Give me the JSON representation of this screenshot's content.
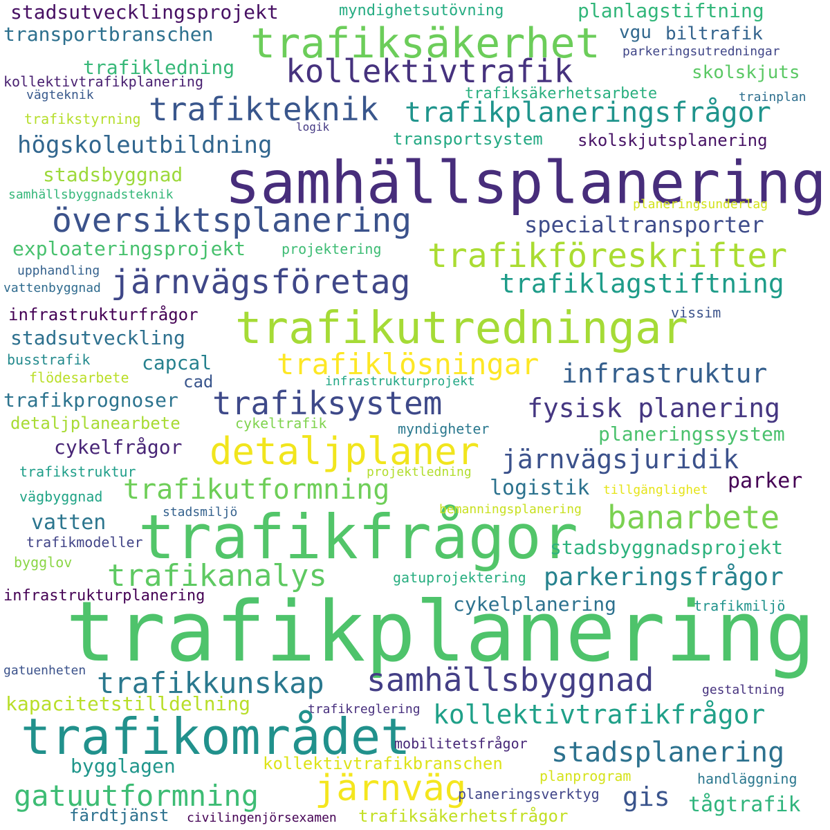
{
  "words": [
    {
      "text": "trafikplanering",
      "color": "#4ec36b"
    },
    {
      "text": "samhällsplanering",
      "color": "#472d7b"
    },
    {
      "text": "trafikfrågor",
      "color": "#52c569"
    },
    {
      "text": "trafikområdet",
      "color": "#21918c"
    },
    {
      "text": "trafikutredningar",
      "color": "#a5db36"
    },
    {
      "text": "trafiksäkerhet",
      "color": "#6ccd5a"
    },
    {
      "text": "kollektivtrafik",
      "color": "#46327e"
    },
    {
      "text": "trafikteknik",
      "color": "#39568c"
    },
    {
      "text": "trafikplaneringsfrågor",
      "color": "#1f948c"
    },
    {
      "text": "järnvägsföretag",
      "color": "#3f4788"
    },
    {
      "text": "översiktsplanering",
      "color": "#3b528b"
    },
    {
      "text": "trafikföreskrifter",
      "color": "#aadc32"
    },
    {
      "text": "detaljplaner",
      "color": "#f1e51d"
    },
    {
      "text": "trafiksystem",
      "color": "#3e4989"
    },
    {
      "text": "trafiklösningar",
      "color": "#fde725"
    },
    {
      "text": "samhällsbyggnad",
      "color": "#433e85"
    },
    {
      "text": "trafikkunskap",
      "color": "#2a788e"
    },
    {
      "text": "trafikanalys",
      "color": "#5ec962"
    },
    {
      "text": "banarbete",
      "color": "#7ad151"
    },
    {
      "text": "järnväg",
      "color": "#f4e61e"
    },
    {
      "text": "gatuutformning",
      "color": "#3dbc74"
    },
    {
      "text": "trafikutformning",
      "color": "#6ece58"
    },
    {
      "text": "kollektivtrafikfrågor",
      "color": "#1fa088"
    },
    {
      "text": "stadsplanering",
      "color": "#2c718e"
    },
    {
      "text": "trafiklagstiftning",
      "color": "#1e9c89"
    },
    {
      "text": "infrastruktur",
      "color": "#355f8d"
    },
    {
      "text": "fysisk planering",
      "color": "#453781"
    },
    {
      "text": "järnvägsjuridik",
      "color": "#3b518b"
    },
    {
      "text": "parkeringsfrågor",
      "color": "#26828e"
    },
    {
      "text": "specialtransporter",
      "color": "#3e4c8a"
    },
    {
      "text": "högskoleutbildning",
      "color": "#31668e"
    },
    {
      "text": "trafikledning",
      "color": "#37b878"
    },
    {
      "text": "stadsutvecklingsprojekt",
      "color": "#471063"
    },
    {
      "text": "transportbranschen",
      "color": "#2d708e"
    },
    {
      "text": "planlagstiftning",
      "color": "#32b67a"
    },
    {
      "text": "myndighetsutövning",
      "color": "#25ac82"
    },
    {
      "text": "biltrafik",
      "color": "#33638d"
    },
    {
      "text": "vgu",
      "color": "#31688e"
    },
    {
      "text": "skolskjuts",
      "color": "#5ac864"
    },
    {
      "text": "parkeringsutredningar",
      "color": "#404688"
    },
    {
      "text": "kollektivtrafikplanering",
      "color": "#481f70"
    },
    {
      "text": "vägteknik",
      "color": "#38598c"
    },
    {
      "text": "trafiksäkerhetsarbete",
      "color": "#29af7f"
    },
    {
      "text": "trainplan",
      "color": "#2e6f8e"
    },
    {
      "text": "trafikstyrning",
      "color": "#b5de2b"
    },
    {
      "text": "logik",
      "color": "#443983"
    },
    {
      "text": "transportsystem",
      "color": "#23a983"
    },
    {
      "text": "skolskjutsplanering",
      "color": "#471365"
    },
    {
      "text": "stadsbyggnad",
      "color": "#9dd93b"
    },
    {
      "text": "samhällsbyggnadsteknik",
      "color": "#35b779"
    },
    {
      "text": "planeringsunderlag",
      "color": "#d2e21b"
    },
    {
      "text": "exploateringsprojekt",
      "color": "#48c16e"
    },
    {
      "text": "projektering",
      "color": "#3dbc74"
    },
    {
      "text": "upphandling",
      "color": "#34618d"
    },
    {
      "text": "vattenbyggnad",
      "color": "#2f6b8e"
    },
    {
      "text": "infrastrukturfrågor",
      "color": "#440154"
    },
    {
      "text": "vissim",
      "color": "#3b528b"
    },
    {
      "text": "stadsutveckling",
      "color": "#2d708e"
    },
    {
      "text": "busstrafik",
      "color": "#238a8d"
    },
    {
      "text": "capcal",
      "color": "#26818e"
    },
    {
      "text": "flödesarbete",
      "color": "#bade28"
    },
    {
      "text": "cad",
      "color": "#39558c"
    },
    {
      "text": "infrastrukturprojekt",
      "color": "#22a785"
    },
    {
      "text": "trafikprognoser",
      "color": "#2c738e"
    },
    {
      "text": "detaljplanearbete",
      "color": "#a8db34"
    },
    {
      "text": "cykeltrafik",
      "color": "#7fd34e"
    },
    {
      "text": "myndigheter",
      "color": "#2a788e"
    },
    {
      "text": "planeringssystem",
      "color": "#4ac16d"
    },
    {
      "text": "cykelfrågor",
      "color": "#482576"
    },
    {
      "text": "trafikstruktur",
      "color": "#1f9e89"
    },
    {
      "text": "projektledning",
      "color": "#b2dd2d"
    },
    {
      "text": "logistik",
      "color": "#2c728e"
    },
    {
      "text": "parker",
      "color": "#440154"
    },
    {
      "text": "vägbyggnad",
      "color": "#20a486"
    },
    {
      "text": "tillgänglighet",
      "color": "#e5e419"
    },
    {
      "text": "stadsmiljö",
      "color": "#34618d"
    },
    {
      "text": "bemanningsplanering",
      "color": "#c8e020"
    },
    {
      "text": "vatten",
      "color": "#2b758e"
    },
    {
      "text": "trafikmodeller",
      "color": "#414487"
    },
    {
      "text": "stadsbyggnadsprojekt",
      "color": "#2db27d"
    },
    {
      "text": "bygglov",
      "color": "#8bd646"
    },
    {
      "text": "gatuprojektering",
      "color": "#28ae80"
    },
    {
      "text": "infrastrukturplanering",
      "color": "#440154"
    },
    {
      "text": "cykelplanering",
      "color": "#2c718e"
    },
    {
      "text": "trafikmiljö",
      "color": "#20938c"
    },
    {
      "text": "gatuenheten",
      "color": "#3b528b"
    },
    {
      "text": "gestaltning",
      "color": "#46327e"
    },
    {
      "text": "kapacitetstilldelning",
      "color": "#b8de29"
    },
    {
      "text": "trafikreglering",
      "color": "#472f7d"
    },
    {
      "text": "mobilitetsfrågor",
      "color": "#482878"
    },
    {
      "text": "bygglagen",
      "color": "#1f968b"
    },
    {
      "text": "kollektivtrafikbranschen",
      "color": "#dde318"
    },
    {
      "text": "planprogram",
      "color": "#d5e21a"
    },
    {
      "text": "handläggning",
      "color": "#2a778e"
    },
    {
      "text": "planeringsverktyg",
      "color": "#404588"
    },
    {
      "text": "gis",
      "color": "#3a548c"
    },
    {
      "text": "färdtjänst",
      "color": "#2c718e"
    },
    {
      "text": "civilingenjörsexamen",
      "color": "#440154"
    },
    {
      "text": "trafiksäkerhetsfrågor",
      "color": "#c2df23"
    },
    {
      "text": "tågtrafik",
      "color": "#2fb47c"
    }
  ]
}
